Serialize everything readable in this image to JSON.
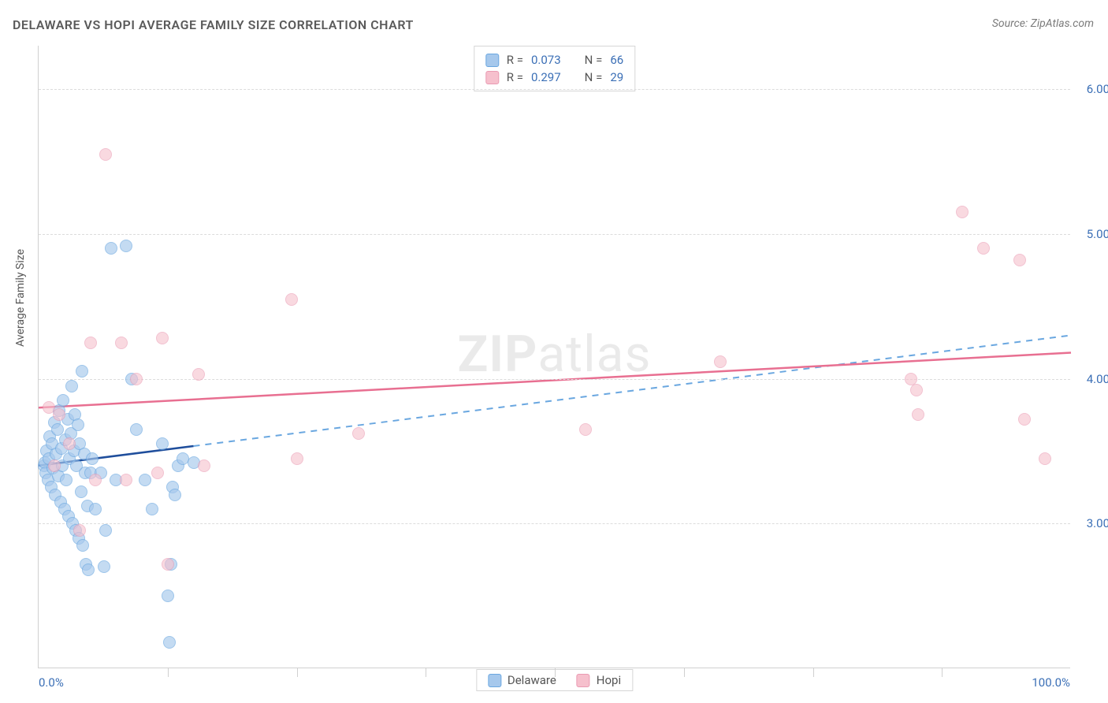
{
  "title": "DELAWARE VS HOPI AVERAGE FAMILY SIZE CORRELATION CHART",
  "source": "Source: ZipAtlas.com",
  "ylabel": "Average Family Size",
  "watermark_bold": "ZIP",
  "watermark_light": "atlas",
  "chart": {
    "type": "scatter",
    "background_color": "#ffffff",
    "grid_color": "#dcdcdc",
    "axis_color": "#d0d0d0",
    "xlim": [
      0,
      100
    ],
    "ylim": [
      2.0,
      6.3
    ],
    "x_ticks_minor_pct": [
      12.5,
      25,
      37.5,
      50,
      62.5,
      75,
      87.5
    ],
    "x_tick_labels": [
      {
        "pos_pct": 0,
        "label": "0.0%",
        "align": "left"
      },
      {
        "pos_pct": 100,
        "label": "100.0%",
        "align": "right"
      }
    ],
    "y_grid": [
      3.0,
      4.0,
      5.0,
      6.0
    ],
    "y_tick_labels": [
      "3.00",
      "4.00",
      "5.00",
      "6.00"
    ],
    "label_color": "#3b6fb6",
    "title_color": "#5a5a5a",
    "title_fontsize": 16,
    "label_fontsize": 14,
    "tick_fontsize": 15,
    "marker_radius": 8,
    "marker_border_width": 1,
    "series": [
      {
        "name": "Delaware",
        "fill": "#a6c8ec",
        "stroke": "#6aa7e0",
        "fill_opacity": 0.65,
        "trend": {
          "x1": 0,
          "y1": 3.4,
          "x2": 100,
          "y2": 4.3,
          "solid_until_x": 15,
          "solid_color": "#1f4e9c",
          "dash_color": "#6aa7e0",
          "width": 2.5
        },
        "points": [
          [
            0.5,
            3.4
          ],
          [
            0.6,
            3.42
          ],
          [
            0.7,
            3.35
          ],
          [
            0.8,
            3.5
          ],
          [
            0.9,
            3.3
          ],
          [
            1.0,
            3.45
          ],
          [
            1.1,
            3.6
          ],
          [
            1.2,
            3.25
          ],
          [
            1.3,
            3.55
          ],
          [
            1.4,
            3.38
          ],
          [
            1.5,
            3.7
          ],
          [
            1.6,
            3.2
          ],
          [
            1.7,
            3.48
          ],
          [
            1.8,
            3.65
          ],
          [
            1.9,
            3.33
          ],
          [
            2.0,
            3.78
          ],
          [
            2.1,
            3.15
          ],
          [
            2.2,
            3.52
          ],
          [
            2.3,
            3.4
          ],
          [
            2.4,
            3.85
          ],
          [
            2.5,
            3.1
          ],
          [
            2.6,
            3.58
          ],
          [
            2.7,
            3.3
          ],
          [
            2.8,
            3.72
          ],
          [
            2.9,
            3.05
          ],
          [
            3.0,
            3.45
          ],
          [
            3.1,
            3.62
          ],
          [
            3.2,
            3.95
          ],
          [
            3.3,
            3.0
          ],
          [
            3.4,
            3.5
          ],
          [
            3.5,
            3.75
          ],
          [
            3.6,
            2.95
          ],
          [
            3.7,
            3.4
          ],
          [
            3.8,
            3.68
          ],
          [
            3.9,
            2.9
          ],
          [
            4.0,
            3.55
          ],
          [
            4.1,
            3.22
          ],
          [
            4.2,
            4.05
          ],
          [
            4.3,
            2.85
          ],
          [
            4.4,
            3.48
          ],
          [
            4.5,
            3.35
          ],
          [
            4.6,
            2.72
          ],
          [
            4.7,
            3.12
          ],
          [
            4.8,
            2.68
          ],
          [
            5.0,
            3.35
          ],
          [
            5.2,
            3.45
          ],
          [
            5.5,
            3.1
          ],
          [
            6.0,
            3.35
          ],
          [
            6.3,
            2.7
          ],
          [
            6.5,
            2.95
          ],
          [
            7.0,
            4.9
          ],
          [
            7.5,
            3.3
          ],
          [
            8.5,
            4.92
          ],
          [
            9.0,
            4.0
          ],
          [
            9.5,
            3.65
          ],
          [
            10.3,
            3.3
          ],
          [
            11.0,
            3.1
          ],
          [
            12.0,
            3.55
          ],
          [
            12.5,
            2.5
          ],
          [
            12.7,
            2.18
          ],
          [
            12.8,
            2.72
          ],
          [
            13.0,
            3.25
          ],
          [
            13.2,
            3.2
          ],
          [
            13.5,
            3.4
          ],
          [
            14.0,
            3.45
          ],
          [
            15.0,
            3.42
          ]
        ]
      },
      {
        "name": "Hopi",
        "fill": "#f6c0cd",
        "stroke": "#ea9ab2",
        "fill_opacity": 0.6,
        "trend": {
          "x1": 0,
          "y1": 3.8,
          "x2": 100,
          "y2": 4.18,
          "solid_until_x": 100,
          "solid_color": "#e86f91",
          "dash_color": "#e86f91",
          "width": 2.5
        },
        "points": [
          [
            1.0,
            3.8
          ],
          [
            1.5,
            3.4
          ],
          [
            2.0,
            3.75
          ],
          [
            3.0,
            3.55
          ],
          [
            4.0,
            2.95
          ],
          [
            5.0,
            4.25
          ],
          [
            5.5,
            3.3
          ],
          [
            6.5,
            5.55
          ],
          [
            8.0,
            4.25
          ],
          [
            8.5,
            3.3
          ],
          [
            9.5,
            4.0
          ],
          [
            11.5,
            3.35
          ],
          [
            12.0,
            4.28
          ],
          [
            12.5,
            2.72
          ],
          [
            15.5,
            4.03
          ],
          [
            16.0,
            3.4
          ],
          [
            24.5,
            4.55
          ],
          [
            25.0,
            3.45
          ],
          [
            31.0,
            3.62
          ],
          [
            53.0,
            3.65
          ],
          [
            66.0,
            4.12
          ],
          [
            84.5,
            4.0
          ],
          [
            85.0,
            3.92
          ],
          [
            85.2,
            3.75
          ],
          [
            89.5,
            5.15
          ],
          [
            91.5,
            4.9
          ],
          [
            95.0,
            4.82
          ],
          [
            95.5,
            3.72
          ],
          [
            97.5,
            3.45
          ]
        ]
      }
    ]
  },
  "stats": {
    "rows": [
      {
        "swatch_fill": "#a6c8ec",
        "swatch_stroke": "#6aa7e0",
        "r_label": "R =",
        "r_val": "0.073",
        "n_label": "N =",
        "n_val": "66"
      },
      {
        "swatch_fill": "#f6c0cd",
        "swatch_stroke": "#ea9ab2",
        "r_label": "R =",
        "r_val": "0.297",
        "n_label": "N =",
        "n_val": "29"
      }
    ]
  },
  "legend": {
    "items": [
      {
        "swatch_fill": "#a6c8ec",
        "swatch_stroke": "#6aa7e0",
        "label": "Delaware"
      },
      {
        "swatch_fill": "#f6c0cd",
        "swatch_stroke": "#ea9ab2",
        "label": "Hopi"
      }
    ]
  }
}
